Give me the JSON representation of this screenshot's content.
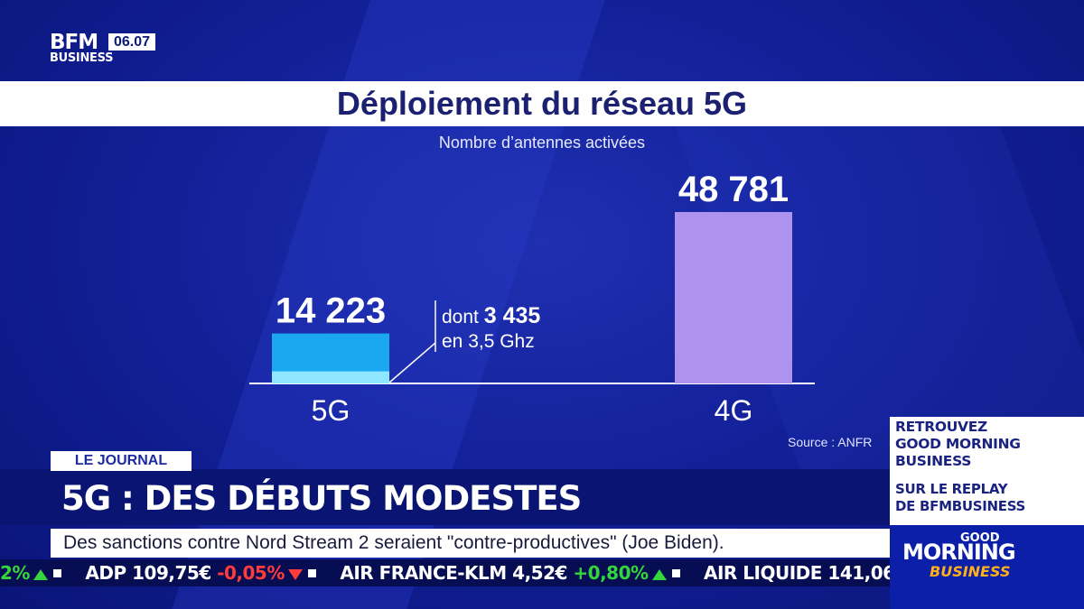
{
  "logo": {
    "brand": "BFM",
    "sub": "BUSINESS",
    "time": "06.07"
  },
  "chart_data": {
    "type": "bar",
    "title": "Déploiement du réseau 5G",
    "subtitle": "Nombre d’antennes activées",
    "categories": [
      "5G",
      "4G"
    ],
    "values": [
      14223,
      48781
    ],
    "value_labels": [
      "14 223",
      "48 781"
    ],
    "sub_value": {
      "category": "5G",
      "value": 3435
    },
    "annotation": {
      "prefix": "dont",
      "value": "3 435",
      "suffix": "en 3,5 Ghz"
    },
    "colors": {
      "5G": "#1aa8f0",
      "5G_sub": "#8fe6ff",
      "4G": "#ad93ee"
    },
    "source": "Source : ANFR"
  },
  "lower_third": {
    "tag": "LE JOURNAL",
    "headline": "5G : DES DÉBUTS MODESTES",
    "news": "Des sanctions contre Nord Stream 2 seraient \"contre-productives\" (Joe Biden)."
  },
  "ticker": [
    {
      "name": "",
      "price": "",
      "change": "2%",
      "dir": "up"
    },
    {
      "name": "ADP",
      "price": "109,75€",
      "change": "-0,05%",
      "dir": "down"
    },
    {
      "name": "AIR FRANCE-KLM",
      "price": "4,52€",
      "change": "+0,80%",
      "dir": "up"
    },
    {
      "name": "AIR LIQUIDE",
      "price": "141,06",
      "change": "",
      "dir": ""
    }
  ],
  "promo": {
    "line1": "RETROUVEZ",
    "line2": "GOOD MORNING",
    "line3": "BUSINESS",
    "line4": "SUR LE REPLAY",
    "line5": "DE BFMBUSINESS"
  },
  "show_logo": {
    "good": "GOOD",
    "morning": "MORNING",
    "business": "BUSINESS"
  }
}
